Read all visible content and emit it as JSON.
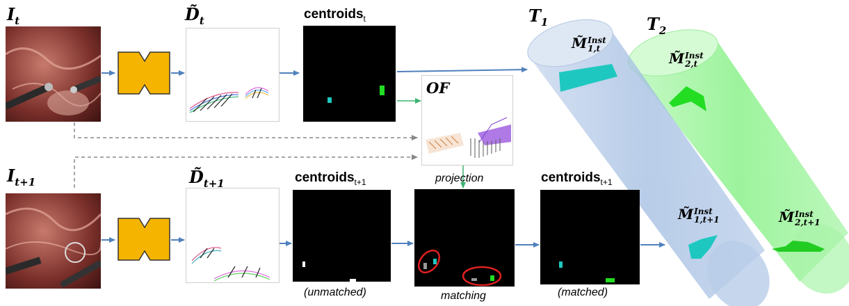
{
  "labels": {
    "img_t_main": "I",
    "img_t_sub": "t",
    "img_t1_main": "I",
    "img_t1_sub": "t+1",
    "depth_t_main": "D̃",
    "depth_t_sub": "t",
    "depth_t1_main": "D̃",
    "depth_t1_sub": "t+1",
    "centroids_t_main": "centroids",
    "centroids_t_sub": "t",
    "centroids_t1_main": "centroids",
    "centroids_t1_sub": "t+1",
    "centroids_t1b_main": "centroids",
    "centroids_t1b_sub": "t+1",
    "of": "OF",
    "tube1_main": "T",
    "tube1_sub": "1",
    "tube2_main": "T",
    "tube2_sub": "2",
    "mask_1t_main": "M̃",
    "mask_1t_sup": "Inst",
    "mask_1t_sub": "1,t",
    "mask_2t_main": "M̃",
    "mask_2t_sup": "Inst",
    "mask_2t_sub": "2,t",
    "mask_1t1_main": "M̃",
    "mask_1t1_sup": "Inst",
    "mask_1t1_sub": "1,t+1",
    "mask_2t1_main": "M̃",
    "mask_2t1_sup": "Inst",
    "mask_2t1_sub": "2,t+1"
  },
  "captions": {
    "projection": "projection",
    "unmatched": "(unmatched)",
    "matching": "matching",
    "matched": "(matched)"
  },
  "colors": {
    "encoder": "#f5b400",
    "arrow": "#4f81bd",
    "green_arrow": "#3cb371",
    "cyan": "#1ec8c0",
    "green": "#22dd22",
    "tube_blue": "#aec6e8",
    "tube_green": "#8af28a",
    "red_ring": "#e02020"
  }
}
